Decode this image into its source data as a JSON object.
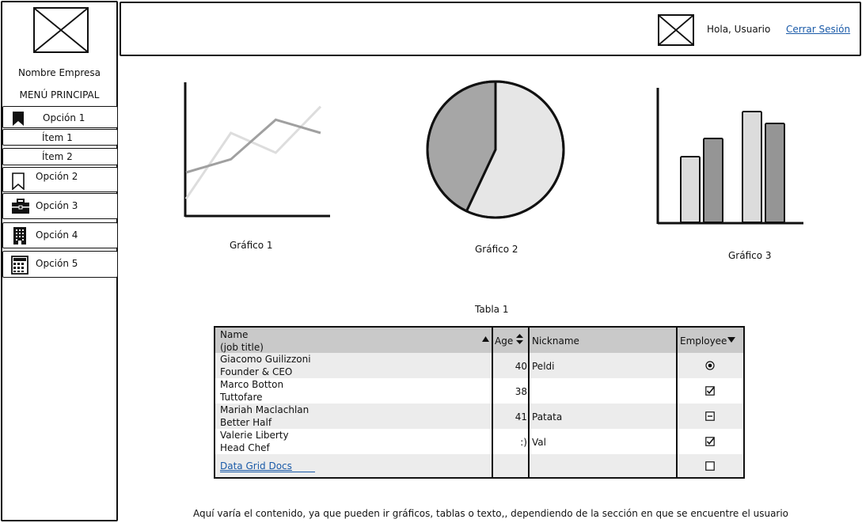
{
  "sidebar": {
    "company_name": "Nombre Empresa",
    "menu_title": "MENÚ PRINCIPAL",
    "items": [
      {
        "label": "Opción 1",
        "icon": "bookmark-filled-icon"
      },
      {
        "label": "Ítem 1"
      },
      {
        "label": "Ítem 2"
      },
      {
        "label": "Opción 2",
        "icon": "bookmark-outline-icon"
      },
      {
        "label": "Opción 3",
        "icon": "briefcase-icon"
      },
      {
        "label": "Opción 4",
        "icon": "building-icon"
      },
      {
        "label": "Opción 5",
        "icon": "calculator-icon"
      }
    ]
  },
  "header": {
    "greeting": "Hola, Usuario",
    "logout_label": "Cerrar Sesión"
  },
  "charts": {
    "line_label": "Gráfico 1",
    "pie_label": "Gráfico 2",
    "bar_label": "Gráfico 3"
  },
  "chart_data": [
    {
      "type": "line",
      "title": "",
      "x": [
        0,
        1,
        2,
        3
      ],
      "series": [
        {
          "values": [
            0.4,
            0.6,
            1.2,
            1.0
          ],
          "color": "#a0a0a0"
        },
        {
          "values": [
            0.0,
            1.0,
            0.7,
            1.4
          ],
          "color": "#dddddd"
        }
      ],
      "ylim": [
        -0.2,
        1.6
      ]
    },
    {
      "type": "pie",
      "title": "",
      "values": [
        57,
        43
      ],
      "colors": [
        "#e6e6e6",
        "#a6a6a6"
      ]
    },
    {
      "type": "bar",
      "title": "",
      "categories": [
        "",
        ""
      ],
      "series": [
        {
          "values": [
            83,
            140
          ],
          "color": "#dcdcdc"
        },
        {
          "values": [
            106,
            125
          ],
          "color": "#959595"
        }
      ],
      "ylim": [
        0,
        170
      ]
    }
  ],
  "table": {
    "title": "Tabla 1",
    "columns": {
      "name": "Name",
      "name_sub": "(job title)",
      "age": "Age",
      "nickname": "Nickname",
      "employee": "Employee"
    },
    "rows": [
      {
        "name": "Giacomo Guilizzoni",
        "title": "Founder & CEO",
        "age": "40",
        "nickname": "Peldi",
        "employee": "radio-selected"
      },
      {
        "name": "Marco Botton",
        "title": "Tuttofare",
        "age": "38",
        "nickname": "",
        "employee": "checked"
      },
      {
        "name": "Mariah Maclachlan",
        "title": "Better Half",
        "age": "41",
        "nickname": "Patata",
        "employee": "indeterminate"
      },
      {
        "name": "Valerie Liberty",
        "title": "Head Chef",
        "age": ":)",
        "nickname": "Val",
        "employee": "checked"
      }
    ],
    "link_label": "Data Grid Docs",
    "link_row_employee": "unchecked"
  },
  "footer_text": "Aquí varía el contenido, ya que pueden ir gráficos, tablas o texto,, dependiendo de la sección en que se encuentre el usuario"
}
